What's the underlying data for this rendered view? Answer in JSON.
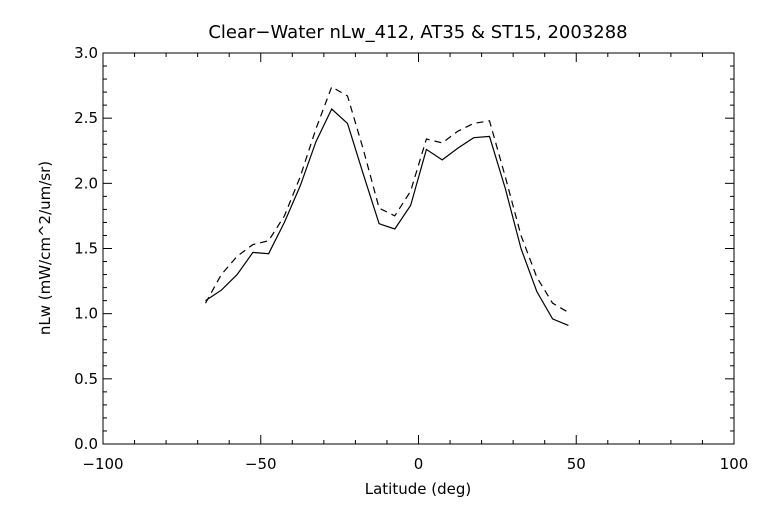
{
  "chart_data": {
    "type": "line",
    "title": "Clear−Water nLw_412, AT35 & ST15, 2003288",
    "xlabel": "Latitude (deg)",
    "ylabel": "nLw (mW/cm^2/um/sr)",
    "xlim": [
      -100,
      100
    ],
    "ylim": [
      0.0,
      3.0
    ],
    "xticks": [
      -100,
      -50,
      0,
      50,
      100
    ],
    "xtick_labels": [
      "−100",
      "−50",
      "0",
      "50",
      "100"
    ],
    "yticks": [
      0.0,
      0.5,
      1.0,
      1.5,
      2.0,
      2.5,
      3.0
    ],
    "ytick_labels": [
      "0.0",
      "0.5",
      "1.0",
      "1.5",
      "2.0",
      "2.5",
      "3.0"
    ],
    "grid": false,
    "legend": "none",
    "series": [
      {
        "style": "solid",
        "x": [
          -67.5,
          -62.5,
          -57.5,
          -52.5,
          -47.5,
          -42.5,
          -37.5,
          -32.5,
          -27.5,
          -22.5,
          -17.5,
          -12.5,
          -7.5,
          -2.5,
          2.5,
          7.5,
          12.5,
          17.5,
          22.5,
          27.5,
          32.5,
          37.5,
          42.5,
          47.5
        ],
        "y": [
          1.1,
          1.18,
          1.3,
          1.47,
          1.46,
          1.7,
          1.98,
          2.32,
          2.57,
          2.46,
          2.07,
          1.69,
          1.65,
          1.83,
          2.26,
          2.18,
          2.27,
          2.35,
          2.36,
          1.96,
          1.5,
          1.17,
          0.96,
          0.91
        ]
      },
      {
        "style": "dashed",
        "x": [
          -67.5,
          -62.5,
          -57.5,
          -52.5,
          -47.5,
          -42.5,
          -37.5,
          -32.5,
          -27.5,
          -22.5,
          -17.5,
          -12.5,
          -7.5,
          -2.5,
          2.5,
          7.5,
          12.5,
          17.5,
          22.5,
          27.5,
          32.5,
          37.5,
          42.5,
          47.5
        ],
        "y": [
          1.08,
          1.3,
          1.44,
          1.53,
          1.56,
          1.75,
          2.05,
          2.42,
          2.74,
          2.67,
          2.26,
          1.81,
          1.75,
          1.94,
          2.34,
          2.31,
          2.4,
          2.46,
          2.48,
          2.05,
          1.6,
          1.28,
          1.08,
          1.01
        ]
      }
    ]
  }
}
